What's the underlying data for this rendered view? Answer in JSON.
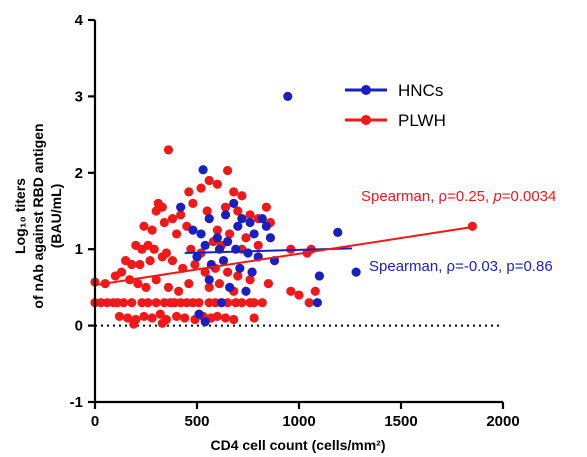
{
  "chart_data": {
    "type": "scatter",
    "xlabel": "CD4 cell count (cells/mm²)",
    "ylabel_lines": [
      "Log₁₀ titers",
      "of nAb against RBD antigen",
      "(BAU/mL)"
    ],
    "xlim": [
      0,
      2000
    ],
    "ylim": [
      -1,
      4
    ],
    "xticks": [
      "0",
      "500",
      "1000",
      "1500",
      "2000"
    ],
    "yticks": [
      "-1",
      "0",
      "1",
      "2",
      "3",
      "4"
    ],
    "reference_line": {
      "y": 0,
      "style": "dotted"
    },
    "legend_position": "top-right",
    "series": [
      {
        "name": "HNCs",
        "color": "#1a1fbf",
        "points": [
          [
            945,
            3.0
          ],
          [
            530,
            2.04
          ],
          [
            420,
            1.55
          ],
          [
            680,
            1.6
          ],
          [
            560,
            1.4
          ],
          [
            640,
            1.45
          ],
          [
            720,
            1.4
          ],
          [
            760,
            1.35
          ],
          [
            820,
            1.4
          ],
          [
            860,
            1.15
          ],
          [
            1190,
            1.22
          ],
          [
            480,
            1.25
          ],
          [
            520,
            1.2
          ],
          [
            600,
            1.15
          ],
          [
            650,
            1.1
          ],
          [
            700,
            1.3
          ],
          [
            780,
            1.2
          ],
          [
            840,
            1.3
          ],
          [
            540,
            1.05
          ],
          [
            610,
            1.0
          ],
          [
            690,
            1.0
          ],
          [
            750,
            0.95
          ],
          [
            800,
            0.9
          ],
          [
            880,
            0.85
          ],
          [
            1100,
            0.65
          ],
          [
            1280,
            0.7
          ],
          [
            500,
            0.9
          ],
          [
            570,
            0.8
          ],
          [
            630,
            0.85
          ],
          [
            710,
            0.75
          ],
          [
            770,
            0.7
          ],
          [
            560,
            0.6
          ],
          [
            660,
            0.5
          ],
          [
            740,
            0.45
          ],
          [
            1090,
            0.3
          ],
          [
            620,
            0.3
          ],
          [
            510,
            0.15
          ],
          [
            540,
            0.05
          ]
        ],
        "trend": {
          "x": [
            440,
            1260
          ],
          "y": [
            0.95,
            1.01
          ],
          "label": "Spearman, ρ=-0.03, p=0.86"
        }
      },
      {
        "name": "PLWH",
        "color": "#f01818",
        "points": [
          [
            360,
            2.3
          ],
          [
            560,
            1.9
          ],
          [
            650,
            2.03
          ],
          [
            460,
            1.75
          ],
          [
            520,
            1.8
          ],
          [
            600,
            1.85
          ],
          [
            680,
            1.75
          ],
          [
            720,
            1.7
          ],
          [
            840,
            1.55
          ],
          [
            310,
            1.6
          ],
          [
            330,
            1.55
          ],
          [
            300,
            1.5
          ],
          [
            380,
            1.4
          ],
          [
            420,
            1.45
          ],
          [
            480,
            1.6
          ],
          [
            550,
            1.5
          ],
          [
            640,
            1.55
          ],
          [
            700,
            1.5
          ],
          [
            760,
            1.45
          ],
          [
            800,
            1.4
          ],
          [
            860,
            1.35
          ],
          [
            240,
            1.3
          ],
          [
            280,
            1.25
          ],
          [
            340,
            1.35
          ],
          [
            400,
            1.2
          ],
          [
            450,
            1.3
          ],
          [
            600,
            1.25
          ],
          [
            660,
            1.2
          ],
          [
            740,
            1.15
          ],
          [
            200,
            1.05
          ],
          [
            230,
            1.0
          ],
          [
            260,
            1.05
          ],
          [
            290,
            1.0
          ],
          [
            350,
            0.95
          ],
          [
            470,
            1.0
          ],
          [
            520,
            0.95
          ],
          [
            580,
            1.1
          ],
          [
            620,
            1.05
          ],
          [
            720,
            1.0
          ],
          [
            800,
            1.05
          ],
          [
            960,
            1.0
          ],
          [
            1040,
            0.95
          ],
          [
            1060,
            1.0
          ],
          [
            150,
            0.85
          ],
          [
            180,
            0.8
          ],
          [
            220,
            0.8
          ],
          [
            270,
            0.85
          ],
          [
            330,
            0.9
          ],
          [
            380,
            0.85
          ],
          [
            430,
            0.75
          ],
          [
            490,
            0.8
          ],
          [
            540,
            0.7
          ],
          [
            590,
            0.75
          ],
          [
            650,
            0.7
          ],
          [
            700,
            0.65
          ],
          [
            760,
            0.6
          ],
          [
            850,
            0.55
          ],
          [
            50,
            0.55
          ],
          [
            100,
            0.65
          ],
          [
            130,
            0.7
          ],
          [
            170,
            0.6
          ],
          [
            210,
            0.55
          ],
          [
            250,
            0.5
          ],
          [
            300,
            0.6
          ],
          [
            360,
            0.5
          ],
          [
            410,
            0.45
          ],
          [
            460,
            0.55
          ],
          [
            560,
            0.5
          ],
          [
            610,
            0.55
          ],
          [
            680,
            0.45
          ],
          [
            960,
            0.45
          ],
          [
            1000,
            0.4
          ],
          [
            1080,
            0.45
          ],
          [
            0,
            0.3
          ],
          [
            30,
            0.3
          ],
          [
            60,
            0.3
          ],
          [
            90,
            0.3
          ],
          [
            110,
            0.3
          ],
          [
            140,
            0.3
          ],
          [
            180,
            0.3
          ],
          [
            230,
            0.3
          ],
          [
            260,
            0.3
          ],
          [
            300,
            0.3
          ],
          [
            340,
            0.3
          ],
          [
            370,
            0.3
          ],
          [
            390,
            0.3
          ],
          [
            420,
            0.3
          ],
          [
            450,
            0.3
          ],
          [
            480,
            0.3
          ],
          [
            510,
            0.3
          ],
          [
            560,
            0.3
          ],
          [
            590,
            0.3
          ],
          [
            620,
            0.3
          ],
          [
            650,
            0.3
          ],
          [
            690,
            0.3
          ],
          [
            720,
            0.3
          ],
          [
            760,
            0.3
          ],
          [
            780,
            0.3
          ],
          [
            820,
            0.3
          ],
          [
            1050,
            0.3
          ],
          [
            0,
            0.57
          ],
          [
            120,
            0.12
          ],
          [
            160,
            0.1
          ],
          [
            200,
            0.08
          ],
          [
            240,
            0.12
          ],
          [
            280,
            0.1
          ],
          [
            320,
            0.15
          ],
          [
            350,
            0.08
          ],
          [
            400,
            0.12
          ],
          [
            440,
            0.1
          ],
          [
            490,
            0.08
          ],
          [
            530,
            0.12
          ],
          [
            570,
            0.1
          ],
          [
            600,
            0.12
          ],
          [
            640,
            0.1
          ],
          [
            680,
            0.08
          ],
          [
            780,
            0.1
          ],
          [
            190,
            0.02
          ],
          [
            330,
            0.03
          ],
          [
            1850,
            1.3
          ]
        ],
        "trend": {
          "x": [
            0,
            1850
          ],
          "y": [
            0.53,
            1.29
          ],
          "label_prefix": "Spearman, ρ=0.25, ",
          "label_p": "p",
          "label_suffix": "=0.0034"
        }
      }
    ]
  }
}
